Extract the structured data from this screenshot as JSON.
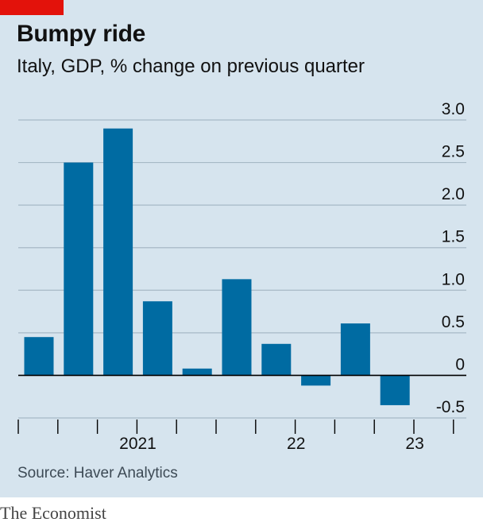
{
  "colors": {
    "background": "#d6e4ee",
    "accent": "#e3120b",
    "bar": "#006ba2",
    "grid": "#a7b9c6",
    "axis": "#000000"
  },
  "chart_data": {
    "type": "bar",
    "title": "Bumpy ride",
    "subtitle": "Italy, GDP, % change on previous quarter",
    "source": "Source: Haver Analytics",
    "publisher": "The Economist",
    "categories": [
      "2020 Q4",
      "2021 Q1",
      "2021 Q2",
      "2021 Q3",
      "2021 Q4",
      "2022 Q1",
      "2022 Q2",
      "2022 Q3",
      "2022 Q4",
      "2023 Q1",
      "2023 Q2"
    ],
    "values": [
      0.45,
      2.5,
      2.9,
      0.87,
      0.08,
      1.13,
      0.37,
      -0.12,
      0.61,
      -0.35,
      null
    ],
    "ylim": [
      -0.5,
      3.0
    ],
    "yticks": [
      "3.0",
      "2.5",
      "2.0",
      "1.5",
      "1.0",
      "0.5",
      "0",
      "-0.5"
    ],
    "ytick_values": [
      3.0,
      2.5,
      2.0,
      1.5,
      1.0,
      0.5,
      0,
      -0.5
    ],
    "xgroups": [
      {
        "label": "2021",
        "first": 1,
        "last": 4
      },
      {
        "label": "22",
        "first": 5,
        "last": 8
      },
      {
        "label": "23",
        "first": 9,
        "last": 10
      }
    ],
    "xlabel": "",
    "ylabel": "",
    "grid": true,
    "y_axis_side": "right"
  }
}
